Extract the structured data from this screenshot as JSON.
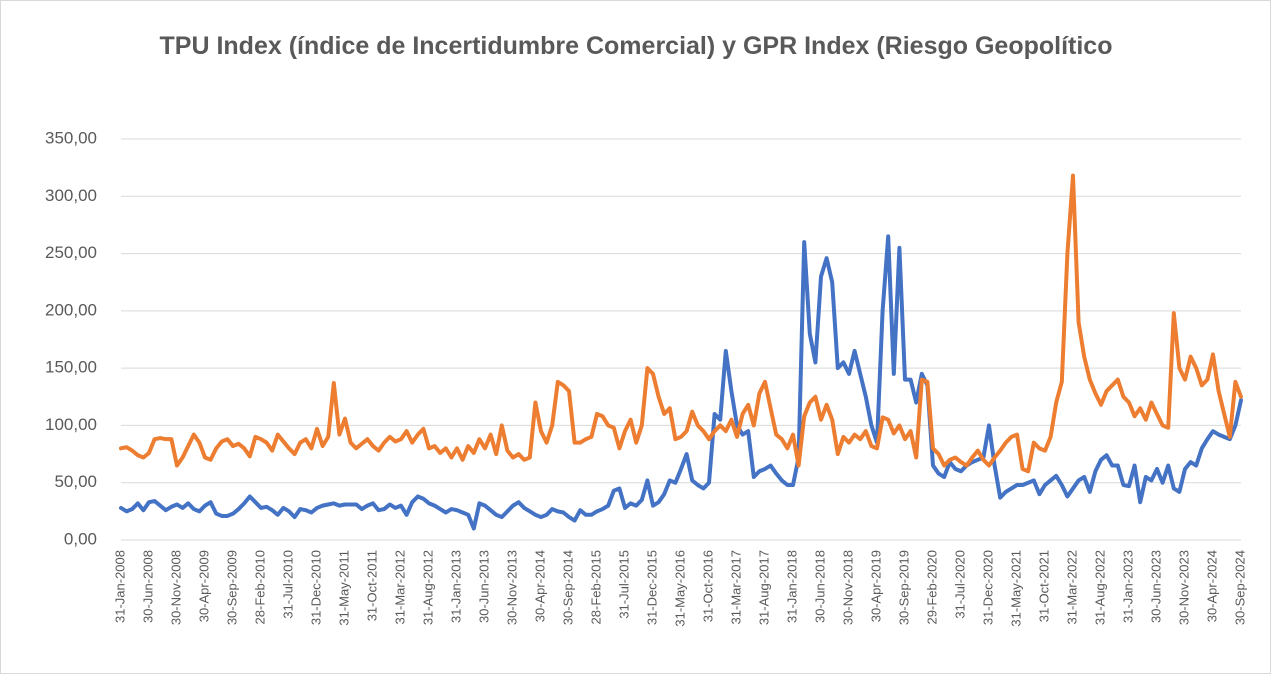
{
  "chart_data": {
    "type": "line",
    "title": "TPU Index (índice de Incertidumbre Comercial) y GPR Index (Riesgo Geopolítico",
    "categories": [
      "31-Jan-2008",
      null,
      null,
      null,
      null,
      "30-Jun-2008",
      null,
      null,
      null,
      null,
      "30-Nov-2008",
      null,
      null,
      null,
      null,
      "30-Apr-2009",
      null,
      null,
      null,
      null,
      "30-Sep-2009",
      null,
      null,
      null,
      null,
      "28-Feb-2010",
      null,
      null,
      null,
      null,
      "31-Jul-2010",
      null,
      null,
      null,
      null,
      "31-Dec-2010",
      null,
      null,
      null,
      null,
      "31-May-2011",
      null,
      null,
      null,
      null,
      "31-Oct-2011",
      null,
      null,
      null,
      null,
      "31-Mar-2012",
      null,
      null,
      null,
      null,
      "31-Aug-2012",
      null,
      null,
      null,
      null,
      "31-Jan-2013",
      null,
      null,
      null,
      null,
      "30-Jun-2013",
      null,
      null,
      null,
      null,
      "30-Nov-2013",
      null,
      null,
      null,
      null,
      "30-Apr-2014",
      null,
      null,
      null,
      null,
      "30-Sep-2014",
      null,
      null,
      null,
      null,
      "28-Feb-2015",
      null,
      null,
      null,
      null,
      "31-Jul-2015",
      null,
      null,
      null,
      null,
      "31-Dec-2015",
      null,
      null,
      null,
      null,
      "31-May-2016",
      null,
      null,
      null,
      null,
      "31-Oct-2016",
      null,
      null,
      null,
      null,
      "31-Mar-2017",
      null,
      null,
      null,
      null,
      "31-Aug-2017",
      null,
      null,
      null,
      null,
      "31-Jan-2018",
      null,
      null,
      null,
      null,
      "30-Jun-2018",
      null,
      null,
      null,
      null,
      "30-Nov-2018",
      null,
      null,
      null,
      null,
      "30-Apr-2019",
      null,
      null,
      null,
      null,
      "30-Sep-2019",
      null,
      null,
      null,
      null,
      "29-Feb-2020",
      null,
      null,
      null,
      null,
      "31-Jul-2020",
      null,
      null,
      null,
      null,
      "31-Dec-2020",
      null,
      null,
      null,
      null,
      "31-May-2021",
      null,
      null,
      null,
      null,
      "31-Oct-2021",
      null,
      null,
      null,
      null,
      "31-Mar-2022",
      null,
      null,
      null,
      null,
      "31-Aug-2022",
      null,
      null,
      null,
      null,
      "31-Jan-2023",
      null,
      null,
      null,
      null,
      "30-Jun-2023",
      null,
      null,
      null,
      null,
      "30-Nov-2023",
      null,
      null,
      null,
      null,
      "30-Apr-2024",
      null,
      null,
      null,
      null,
      "30-Sep-2024"
    ],
    "series": [
      {
        "color": "#4472c4",
        "values": [
          28,
          25,
          27,
          32,
          26,
          33,
          34,
          30,
          26,
          29,
          31,
          28,
          32,
          27,
          25,
          30,
          33,
          23,
          21,
          21,
          23,
          27,
          32,
          38,
          33,
          28,
          29,
          26,
          22,
          28,
          25,
          20,
          27,
          26,
          24,
          28,
          30,
          31,
          32,
          30,
          31,
          31,
          31,
          27,
          30,
          32,
          26,
          27,
          31,
          28,
          30,
          22,
          33,
          38,
          36,
          32,
          30,
          27,
          24,
          27,
          26,
          24,
          22,
          10,
          32,
          30,
          26,
          22,
          20,
          25,
          30,
          33,
          28,
          25,
          22,
          20,
          22,
          27,
          25,
          24,
          20,
          17,
          26,
          22,
          22,
          25,
          27,
          30,
          43,
          45,
          28,
          32,
          30,
          35,
          52,
          30,
          33,
          40,
          52,
          50,
          62,
          75,
          52,
          48,
          45,
          50,
          110,
          105,
          165,
          130,
          100,
          92,
          95,
          55,
          60,
          62,
          65,
          58,
          52,
          48,
          48,
          72,
          260,
          180,
          155,
          230,
          246,
          225,
          150,
          155,
          145,
          165,
          145,
          125,
          100,
          85,
          200,
          265,
          145,
          255,
          140,
          140,
          120,
          145,
          135,
          65,
          58,
          55,
          68,
          62,
          60,
          65,
          68,
          70,
          72,
          100,
          65,
          37,
          42,
          45,
          48,
          48,
          50,
          52,
          40,
          48,
          52,
          56,
          48,
          38,
          45,
          52,
          55,
          42,
          60,
          70,
          74,
          65,
          65,
          48,
          47,
          65,
          33,
          55,
          52,
          62,
          50,
          65,
          45,
          42,
          62,
          68,
          65,
          80,
          88,
          95,
          92,
          90,
          88,
          100,
          122
        ]
      },
      {
        "color": "#ed7d31",
        "values": [
          80,
          81,
          78,
          74,
          72,
          76,
          88,
          89,
          88,
          88,
          65,
          72,
          82,
          92,
          85,
          72,
          70,
          80,
          86,
          88,
          82,
          84,
          80,
          73,
          90,
          88,
          85,
          78,
          92,
          86,
          80,
          75,
          85,
          88,
          80,
          97,
          82,
          90,
          137,
          92,
          106,
          85,
          80,
          84,
          88,
          82,
          78,
          85,
          90,
          86,
          88,
          95,
          85,
          92,
          97,
          80,
          82,
          76,
          80,
          72,
          80,
          70,
          82,
          76,
          88,
          80,
          92,
          75,
          100,
          78,
          72,
          75,
          70,
          72,
          120,
          95,
          85,
          100,
          138,
          135,
          130,
          85,
          85,
          88,
          90,
          110,
          108,
          100,
          98,
          80,
          95,
          105,
          85,
          100,
          150,
          145,
          125,
          110,
          115,
          88,
          90,
          95,
          112,
          100,
          95,
          88,
          95,
          100,
          95,
          105,
          90,
          110,
          118,
          100,
          128,
          138,
          115,
          92,
          88,
          80,
          92,
          65,
          108,
          120,
          125,
          105,
          118,
          105,
          75,
          90,
          85,
          92,
          88,
          95,
          82,
          80,
          107,
          105,
          93,
          100,
          88,
          95,
          72,
          140,
          138,
          80,
          75,
          65,
          70,
          72,
          68,
          65,
          72,
          78,
          70,
          65,
          72,
          78,
          85,
          90,
          92,
          62,
          60,
          85,
          80,
          78,
          90,
          120,
          138,
          250,
          318,
          190,
          160,
          140,
          128,
          118,
          130,
          135,
          140,
          125,
          120,
          108,
          115,
          105,
          120,
          110,
          100,
          98,
          198,
          150,
          140,
          160,
          150,
          135,
          140,
          162,
          130,
          110,
          90,
          138,
          125
        ]
      }
    ],
    "ylim": [
      0,
      350
    ],
    "yticks": [
      {
        "value": 0,
        "label": "0,00"
      },
      {
        "value": 50,
        "label": "50,00"
      },
      {
        "value": 100,
        "label": "100,00"
      },
      {
        "value": 150,
        "label": "150,00"
      },
      {
        "value": 200,
        "label": "200,00"
      },
      {
        "value": 250,
        "label": "250,00"
      },
      {
        "value": 300,
        "label": "300,00"
      },
      {
        "value": 350,
        "label": "350,00"
      }
    ],
    "grid": true
  }
}
